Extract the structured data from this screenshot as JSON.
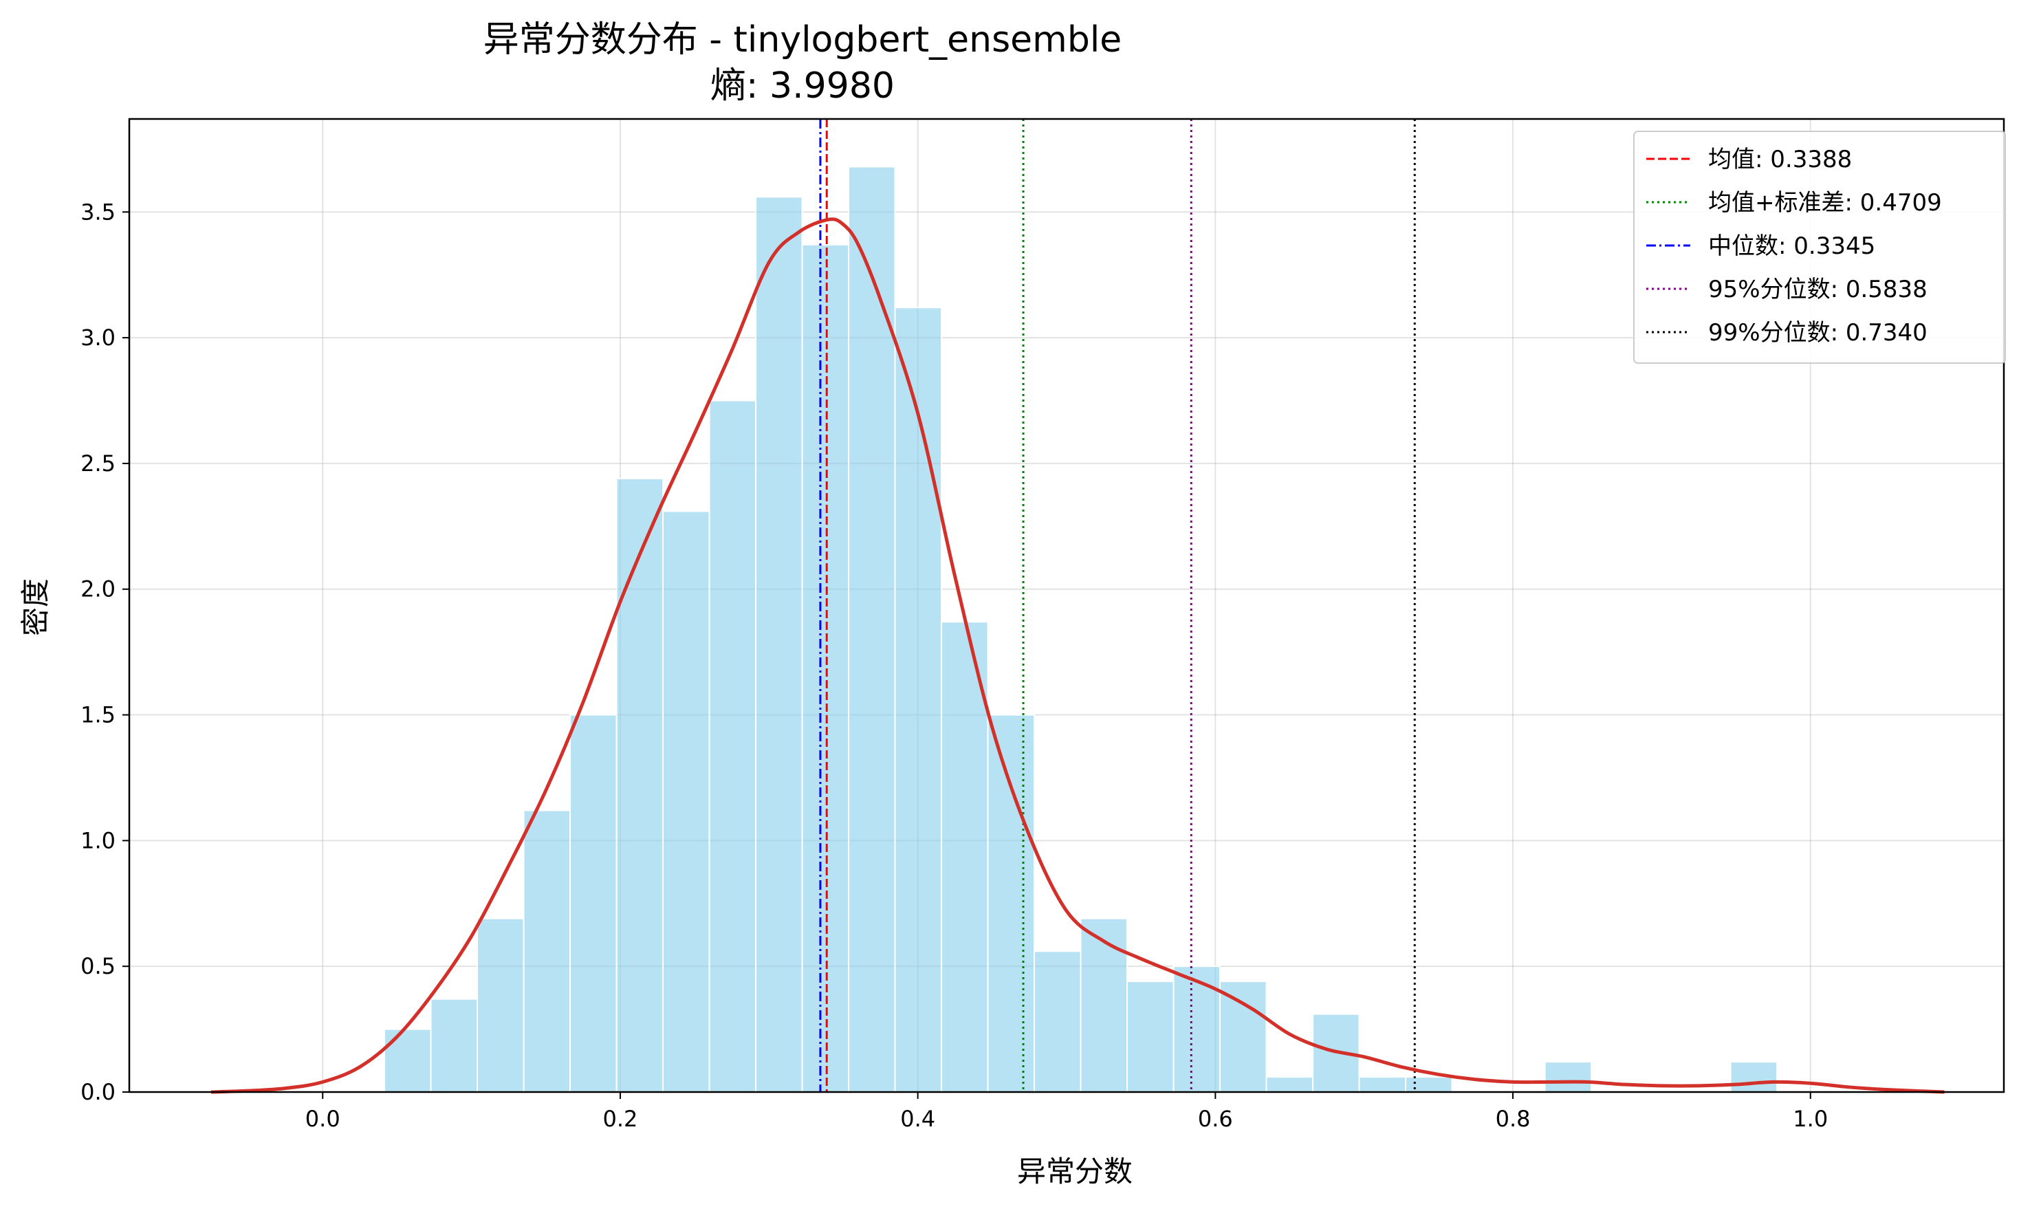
{
  "chart_data": {
    "type": "histogram+kde",
    "title": "异常分数分布 - tinylogbert_ensemble",
    "subtitle": "熵: 3.9980",
    "xlabel": "异常分数",
    "ylabel": "密度",
    "xlim": [
      -0.13,
      1.13
    ],
    "ylim": [
      0,
      3.87
    ],
    "xticks": [
      0.0,
      0.2,
      0.4,
      0.6,
      0.8,
      1.0
    ],
    "xtick_labels": [
      "0.0",
      "0.2",
      "0.4",
      "0.6",
      "0.8",
      "1.0"
    ],
    "yticks": [
      0.0,
      0.5,
      1.0,
      1.5,
      2.0,
      2.5,
      3.0,
      3.5
    ],
    "ytick_labels": [
      "0.0",
      "0.5",
      "1.0",
      "1.5",
      "2.0",
      "2.5",
      "3.0",
      "3.5"
    ],
    "grid": true,
    "legend_position": "top-right",
    "histogram": {
      "color": "#87CEEB",
      "bin_edges": [
        0.0415,
        0.0727,
        0.1039,
        0.1351,
        0.1663,
        0.1975,
        0.2287,
        0.2599,
        0.2911,
        0.3223,
        0.3535,
        0.3847,
        0.4159,
        0.4471,
        0.4783,
        0.5095,
        0.5407,
        0.5719,
        0.6031,
        0.6343,
        0.6655,
        0.6967,
        0.7279,
        0.7591,
        0.7903,
        0.8215,
        0.8527,
        0.8839,
        0.9151,
        0.9463,
        0.9775
      ],
      "density": [
        0.25,
        0.37,
        0.69,
        1.12,
        1.5,
        2.44,
        2.31,
        2.75,
        3.56,
        3.37,
        3.68,
        3.12,
        1.87,
        1.5,
        0.56,
        0.69,
        0.44,
        0.5,
        0.44,
        0.06,
        0.31,
        0.06,
        0.06,
        0.0,
        0.0,
        0.12,
        0.0,
        0.0,
        0.0,
        0.12
      ]
    },
    "kde": {
      "color": "#D3302A",
      "x": [
        -0.075,
        -0.05,
        -0.025,
        0.0,
        0.025,
        0.05,
        0.075,
        0.1,
        0.125,
        0.15,
        0.175,
        0.2,
        0.225,
        0.25,
        0.275,
        0.3,
        0.32,
        0.34,
        0.35,
        0.36,
        0.375,
        0.4,
        0.425,
        0.45,
        0.475,
        0.5,
        0.525,
        0.55,
        0.575,
        0.6,
        0.625,
        0.65,
        0.675,
        0.7,
        0.725,
        0.75,
        0.775,
        0.8,
        0.825,
        0.85,
        0.875,
        0.9,
        0.925,
        0.95,
        0.975,
        1.0,
        1.025,
        1.05,
        1.09
      ],
      "y": [
        0.0,
        0.005,
        0.015,
        0.04,
        0.1,
        0.22,
        0.4,
        0.62,
        0.9,
        1.2,
        1.55,
        1.95,
        2.3,
        2.62,
        2.95,
        3.3,
        3.42,
        3.47,
        3.45,
        3.37,
        3.15,
        2.7,
        2.05,
        1.45,
        1.02,
        0.72,
        0.6,
        0.53,
        0.47,
        0.41,
        0.33,
        0.23,
        0.17,
        0.14,
        0.1,
        0.07,
        0.05,
        0.04,
        0.04,
        0.04,
        0.03,
        0.025,
        0.025,
        0.03,
        0.04,
        0.035,
        0.02,
        0.01,
        0.0
      ]
    },
    "reference_lines": [
      {
        "label": "均值: 0.3388",
        "x": 0.3388,
        "color": "#FF0000",
        "style": "dashed"
      },
      {
        "label": "均值+标准差: 0.4709",
        "x": 0.4709,
        "color": "#008000",
        "style": "dotted"
      },
      {
        "label": "中位数: 0.3345",
        "x": 0.3345,
        "color": "#0000FF",
        "style": "dashdot"
      },
      {
        "label": "95%分位数: 0.5838",
        "x": 0.5838,
        "color": "#800080",
        "style": "dotted"
      },
      {
        "label": "99%分位数: 0.7340",
        "x": 0.734,
        "color": "#000000",
        "style": "dotted"
      }
    ]
  }
}
